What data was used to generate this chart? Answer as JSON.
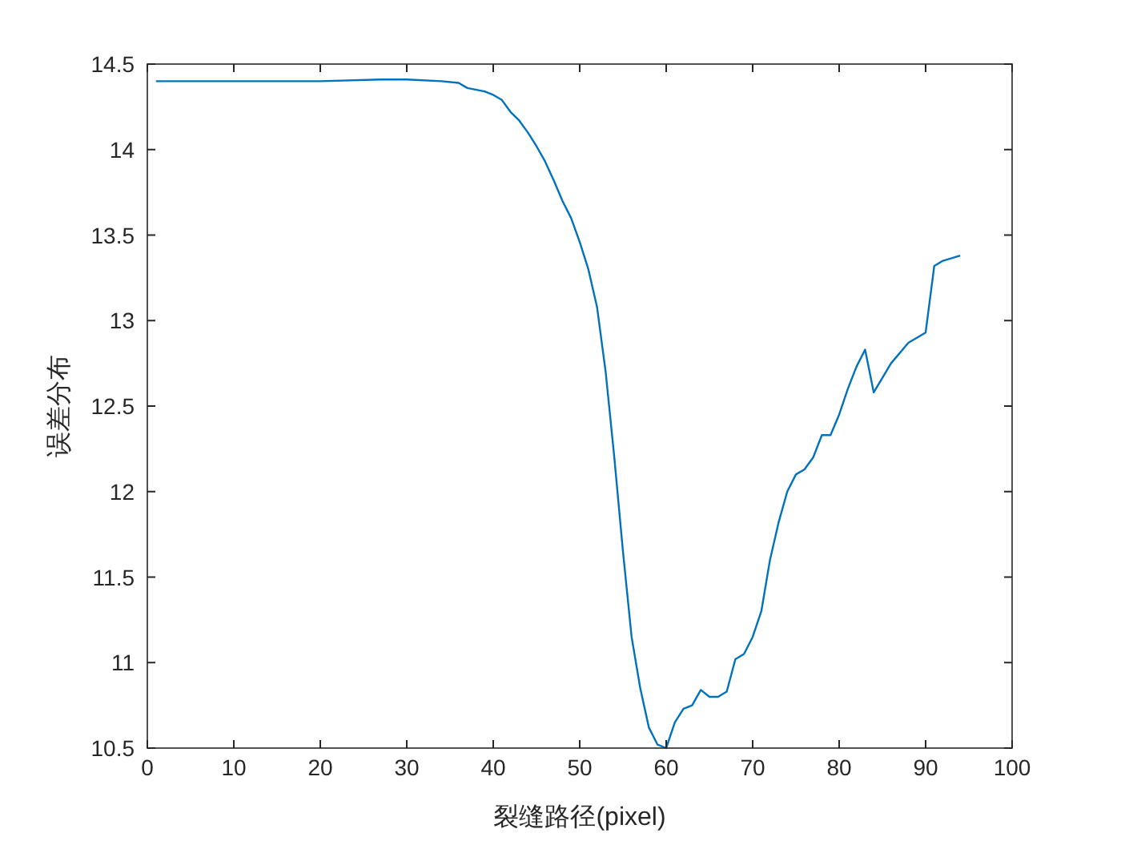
{
  "chart_data": {
    "type": "line",
    "xlabel": "裂缝路径(pixel)",
    "ylabel": "误差分布",
    "xlim": [
      0,
      100
    ],
    "xticks": [
      0,
      10,
      20,
      30,
      40,
      50,
      60,
      70,
      80,
      90,
      100
    ],
    "ylim": [
      10.5,
      14.5
    ],
    "yticks": [
      10.5,
      11,
      11.5,
      12,
      12.5,
      13,
      13.5,
      14,
      14.5
    ],
    "grid": false,
    "series": [
      {
        "color": "#0072bd",
        "x": [
          1,
          10,
          20,
          27,
          30,
          34,
          36,
          37,
          39,
          40,
          41,
          42,
          43,
          44,
          45,
          46,
          47,
          48,
          49,
          50,
          51,
          52,
          53,
          54,
          55,
          56,
          57,
          58,
          59,
          60,
          61,
          62,
          63,
          64,
          65,
          66,
          67,
          68,
          69,
          70,
          71,
          72,
          73,
          74,
          75,
          76,
          77,
          78,
          79,
          80,
          81,
          82,
          83,
          84,
          86,
          88,
          90,
          91,
          92,
          94
        ],
        "values": [
          14.4,
          14.4,
          14.4,
          14.41,
          14.41,
          14.4,
          14.39,
          14.36,
          14.34,
          14.32,
          14.29,
          14.22,
          14.17,
          14.1,
          14.02,
          13.93,
          13.82,
          13.7,
          13.6,
          13.46,
          13.3,
          13.08,
          12.7,
          12.2,
          11.65,
          11.15,
          10.85,
          10.62,
          10.52,
          10.5,
          10.65,
          10.73,
          10.75,
          10.84,
          10.8,
          10.8,
          10.83,
          11.02,
          11.05,
          11.15,
          11.3,
          11.6,
          11.82,
          12.0,
          12.1,
          12.13,
          12.2,
          12.33,
          12.33,
          12.45,
          12.6,
          12.73,
          12.83,
          12.58,
          12.75,
          12.87,
          12.93,
          13.32,
          13.35,
          13.38
        ]
      }
    ]
  }
}
